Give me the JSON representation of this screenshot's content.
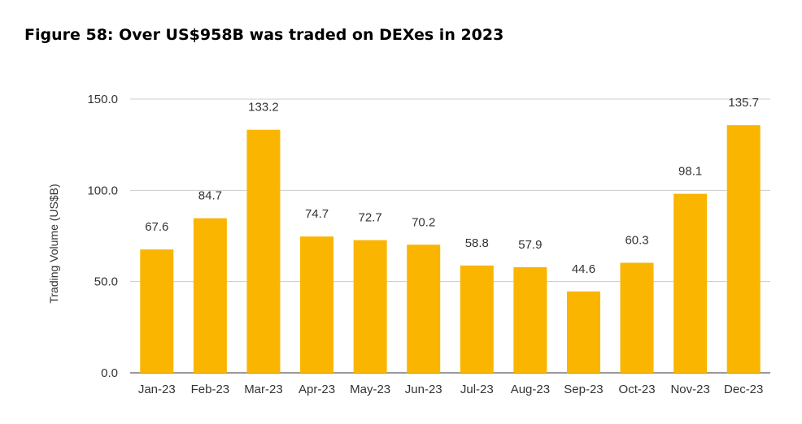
{
  "chart_data": {
    "type": "bar",
    "title": "Figure 58: Over US$958B was traded on DEXes in 2023",
    "xlabel": "",
    "ylabel": "Trading Volume (US$B)",
    "ylim": [
      0,
      150
    ],
    "yticks": [
      "0.0",
      "50.0",
      "100.0",
      "150.0"
    ],
    "grid": true,
    "bar_color": "#F9B500",
    "categories": [
      "Jan-23",
      "Feb-23",
      "Mar-23",
      "Apr-23",
      "May-23",
      "Jun-23",
      "Jul-23",
      "Aug-23",
      "Sep-23",
      "Oct-23",
      "Nov-23",
      "Dec-23"
    ],
    "values": [
      67.6,
      84.7,
      133.2,
      74.7,
      72.7,
      70.2,
      58.8,
      57.9,
      44.6,
      60.3,
      98.1,
      135.7
    ],
    "value_labels": [
      "67.6",
      "84.7",
      "133.2",
      "74.7",
      "72.7",
      "70.2",
      "58.8",
      "57.9",
      "44.6",
      "60.3",
      "98.1",
      "135.7"
    ]
  }
}
